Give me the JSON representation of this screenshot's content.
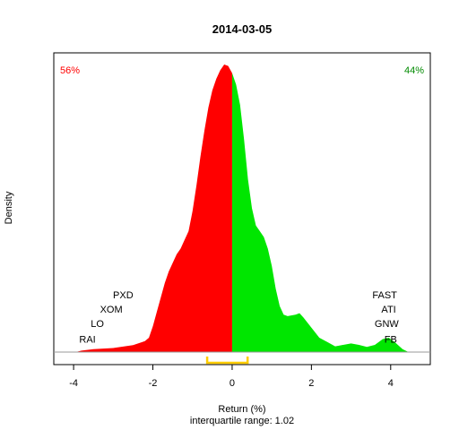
{
  "chart_data": {
    "type": "area",
    "title": "2014-03-05",
    "xlabel": "Return (%)",
    "sublabel": "interquartile range: 1.02",
    "ylabel": "Density",
    "xlim": [
      -4.5,
      5.0
    ],
    "ylim": [
      0,
      1.0
    ],
    "x_ticks": [
      -4,
      -2,
      0,
      2,
      4
    ],
    "x_tick_labels": [
      "-4",
      "-2",
      "0",
      "2",
      "4"
    ],
    "split_at": 0,
    "negative_share_label": "56%",
    "positive_share_label": "44%",
    "negative_color": "#ff0000",
    "positive_color": "#00e600",
    "iqr_color": "#ffcc00",
    "iqr": [
      -0.63,
      0.39
    ],
    "density": [
      {
        "x": -3.95,
        "y": 0.0
      },
      {
        "x": -3.8,
        "y": 0.005
      },
      {
        "x": -3.5,
        "y": 0.01
      },
      {
        "x": -3.0,
        "y": 0.014
      },
      {
        "x": -2.5,
        "y": 0.024
      },
      {
        "x": -2.2,
        "y": 0.038
      },
      {
        "x": -2.1,
        "y": 0.05
      },
      {
        "x": -2.0,
        "y": 0.09
      },
      {
        "x": -1.9,
        "y": 0.14
      },
      {
        "x": -1.8,
        "y": 0.19
      },
      {
        "x": -1.7,
        "y": 0.24
      },
      {
        "x": -1.6,
        "y": 0.28
      },
      {
        "x": -1.5,
        "y": 0.31
      },
      {
        "x": -1.4,
        "y": 0.34
      },
      {
        "x": -1.3,
        "y": 0.36
      },
      {
        "x": -1.2,
        "y": 0.39
      },
      {
        "x": -1.1,
        "y": 0.42
      },
      {
        "x": -1.0,
        "y": 0.49
      },
      {
        "x": -0.9,
        "y": 0.58
      },
      {
        "x": -0.8,
        "y": 0.68
      },
      {
        "x": -0.7,
        "y": 0.77
      },
      {
        "x": -0.6,
        "y": 0.85
      },
      {
        "x": -0.5,
        "y": 0.91
      },
      {
        "x": -0.4,
        "y": 0.95
      },
      {
        "x": -0.3,
        "y": 0.98
      },
      {
        "x": -0.2,
        "y": 1.0
      },
      {
        "x": -0.1,
        "y": 0.995
      },
      {
        "x": 0.0,
        "y": 0.97
      },
      {
        "x": 0.1,
        "y": 0.93
      },
      {
        "x": 0.2,
        "y": 0.86
      },
      {
        "x": 0.3,
        "y": 0.74
      },
      {
        "x": 0.4,
        "y": 0.6
      },
      {
        "x": 0.5,
        "y": 0.5
      },
      {
        "x": 0.6,
        "y": 0.44
      },
      {
        "x": 0.7,
        "y": 0.42
      },
      {
        "x": 0.8,
        "y": 0.4
      },
      {
        "x": 0.9,
        "y": 0.36
      },
      {
        "x": 1.0,
        "y": 0.3
      },
      {
        "x": 1.1,
        "y": 0.22
      },
      {
        "x": 1.2,
        "y": 0.16
      },
      {
        "x": 1.3,
        "y": 0.13
      },
      {
        "x": 1.4,
        "y": 0.125
      },
      {
        "x": 1.6,
        "y": 0.13
      },
      {
        "x": 1.7,
        "y": 0.135
      },
      {
        "x": 1.8,
        "y": 0.12
      },
      {
        "x": 2.0,
        "y": 0.085
      },
      {
        "x": 2.2,
        "y": 0.05
      },
      {
        "x": 2.4,
        "y": 0.035
      },
      {
        "x": 2.6,
        "y": 0.02
      },
      {
        "x": 2.8,
        "y": 0.025
      },
      {
        "x": 3.0,
        "y": 0.03
      },
      {
        "x": 3.2,
        "y": 0.025
      },
      {
        "x": 3.4,
        "y": 0.018
      },
      {
        "x": 3.6,
        "y": 0.025
      },
      {
        "x": 3.8,
        "y": 0.045
      },
      {
        "x": 3.95,
        "y": 0.05
      },
      {
        "x": 4.1,
        "y": 0.035
      },
      {
        "x": 4.3,
        "y": 0.01
      },
      {
        "x": 4.45,
        "y": 0.0
      }
    ],
    "labels_left": [
      {
        "text": "PXD",
        "x": -2.75,
        "y": 0.2
      },
      {
        "text": "XOM",
        "x": -3.05,
        "y": 0.15
      },
      {
        "text": "LO",
        "x": -3.4,
        "y": 0.1
      },
      {
        "text": "RAI",
        "x": -3.65,
        "y": 0.045
      }
    ],
    "labels_right": [
      {
        "text": "FAST",
        "x": 3.85,
        "y": 0.2
      },
      {
        "text": "ATI",
        "x": 3.95,
        "y": 0.15
      },
      {
        "text": "GNW",
        "x": 3.9,
        "y": 0.1
      },
      {
        "text": "FB",
        "x": 4.0,
        "y": 0.045
      }
    ]
  }
}
